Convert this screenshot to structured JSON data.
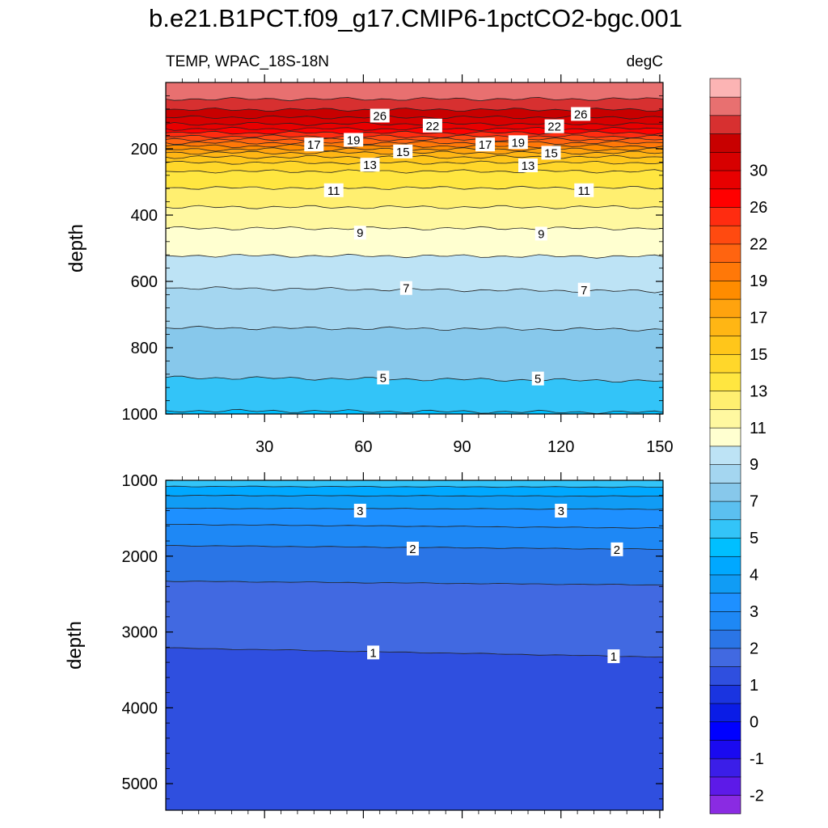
{
  "title": "b.e21.B1PCT.f09_g17.CMIP6-1pctCO2-bgc.001",
  "left_subtitle": "TEMP, WPAC_18S-18N",
  "right_subtitle": "degC",
  "chart_data": [
    {
      "type": "contour",
      "panel": "upper",
      "ylabel": "depth",
      "xlabel": "",
      "xlim": [
        0,
        151
      ],
      "ylim": [
        1000,
        0
      ],
      "y_reversed": true,
      "xticks": [
        30,
        60,
        90,
        120,
        150
      ],
      "yticks": [
        200,
        400,
        600,
        800,
        1000
      ],
      "contour_lines": [
        {
          "level": 30,
          "depths": [
            50,
            50
          ]
        },
        {
          "level": 28,
          "depths": [
            82,
            82
          ]
        },
        {
          "level": 26,
          "depths": [
            105,
            105
          ]
        },
        {
          "level": 24,
          "depths": [
            125,
            125
          ]
        },
        {
          "level": 22,
          "depths": [
            140,
            140
          ]
        },
        {
          "level": 21,
          "depths": [
            152,
            152
          ]
        },
        {
          "level": 20,
          "depths": [
            163,
            163
          ]
        },
        {
          "level": 19,
          "depths": [
            172,
            172
          ]
        },
        {
          "level": 18,
          "depths": [
            182,
            182
          ]
        },
        {
          "level": 17,
          "depths": [
            192,
            192
          ]
        },
        {
          "level": 16,
          "depths": [
            202,
            202
          ]
        },
        {
          "level": 15,
          "depths": [
            212,
            212
          ]
        },
        {
          "level": 14,
          "depths": [
            225,
            225
          ]
        },
        {
          "level": 13,
          "depths": [
            242,
            242
          ]
        },
        {
          "level": 12,
          "depths": [
            268,
            268
          ]
        },
        {
          "level": 11,
          "depths": [
            318,
            318
          ]
        },
        {
          "level": 10,
          "depths": [
            376,
            376
          ]
        },
        {
          "level": 9,
          "depths": [
            440,
            440
          ]
        },
        {
          "level": 8,
          "depths": [
            522,
            525
          ]
        },
        {
          "level": 7,
          "depths": [
            620,
            630
          ]
        },
        {
          "level": 6,
          "depths": [
            740,
            745
          ]
        },
        {
          "level": 5,
          "depths": [
            890,
            900
          ]
        },
        {
          "level": 4.5,
          "depths": [
            990,
            995
          ]
        }
      ],
      "contour_labels": [
        {
          "text": "26",
          "x": 65,
          "y": 100
        },
        {
          "text": "26",
          "x": 126,
          "y": 95
        },
        {
          "text": "22",
          "x": 81,
          "y": 130
        },
        {
          "text": "22",
          "x": 118,
          "y": 132
        },
        {
          "text": "17",
          "x": 45,
          "y": 187
        },
        {
          "text": "19",
          "x": 57,
          "y": 173
        },
        {
          "text": "17",
          "x": 97,
          "y": 187
        },
        {
          "text": "19",
          "x": 107,
          "y": 180
        },
        {
          "text": "15",
          "x": 72,
          "y": 208
        },
        {
          "text": "15",
          "x": 117,
          "y": 212
        },
        {
          "text": "13",
          "x": 62,
          "y": 248
        },
        {
          "text": "13",
          "x": 110,
          "y": 250
        },
        {
          "text": "11",
          "x": 51,
          "y": 325
        },
        {
          "text": "11",
          "x": 127,
          "y": 325
        },
        {
          "text": "9",
          "x": 59,
          "y": 453
        },
        {
          "text": "9",
          "x": 114,
          "y": 456
        },
        {
          "text": "7",
          "x": 73,
          "y": 620
        },
        {
          "text": "7",
          "x": 127,
          "y": 625
        },
        {
          "text": "5",
          "x": 66,
          "y": 890
        },
        {
          "text": "5",
          "x": 113,
          "y": 893
        }
      ]
    },
    {
      "type": "contour",
      "panel": "lower",
      "ylabel": "depth",
      "xlabel": "",
      "xlim": [
        0,
        151
      ],
      "ylim": [
        5350,
        1000
      ],
      "y_reversed": true,
      "xticks": [
        30,
        60,
        90,
        120,
        150
      ],
      "yticks": [
        1000,
        2000,
        3000,
        4000,
        5000
      ],
      "contour_lines": [
        {
          "level": 4,
          "depths": [
            1080,
            1090
          ]
        },
        {
          "level": 3.5,
          "depths": [
            1200,
            1210
          ]
        },
        {
          "level": 3,
          "depths": [
            1370,
            1380
          ]
        },
        {
          "level": 2.5,
          "depths": [
            1580,
            1630
          ]
        },
        {
          "level": 2,
          "depths": [
            1860,
            1910
          ]
        },
        {
          "level": 1.5,
          "depths": [
            2330,
            2380
          ]
        },
        {
          "level": 1,
          "depths": [
            3210,
            3330
          ]
        }
      ],
      "contour_labels": [
        {
          "text": "3",
          "x": 59,
          "y": 1400
        },
        {
          "text": "3",
          "x": 120,
          "y": 1400
        },
        {
          "text": "2",
          "x": 75,
          "y": 1900
        },
        {
          "text": "2",
          "x": 137,
          "y": 1910
        },
        {
          "text": "1",
          "x": 63,
          "y": 3270
        },
        {
          "text": "1",
          "x": 136,
          "y": 3320
        }
      ]
    }
  ],
  "colorbar": {
    "levels": [
      -3,
      -2.5,
      -2,
      -1.5,
      -1,
      -0.5,
      0,
      0.5,
      1,
      1.5,
      2,
      2.5,
      3,
      3.5,
      4,
      4.5,
      5,
      5.5,
      6,
      7,
      8,
      9,
      10,
      11,
      12,
      13,
      14,
      15,
      16,
      17,
      18,
      19,
      20,
      21,
      22,
      24,
      26,
      28,
      30,
      32,
      34
    ],
    "colors": [
      "#8A2BE2",
      "#5D1AE8",
      "#3B1EE8",
      "#1A0AF0",
      "#0000FF",
      "#0A1CE6",
      "#1A34E0",
      "#2F4FDF",
      "#4169E1",
      "#2A75E6",
      "#1E88F5",
      "#1E90FF",
      "#109CF5",
      "#00A8FF",
      "#00BFFF",
      "#33C4F8",
      "#5BC0F0",
      "#87C8EB",
      "#A4D6F0",
      "#BDE3F5",
      "#FFFFD0",
      "#FFF8A0",
      "#FFEF70",
      "#FFE640",
      "#FFD72A",
      "#FFC61A",
      "#FFB614",
      "#FFA30E",
      "#FF8C00",
      "#FF7808",
      "#FF6410",
      "#FF4A10",
      "#FF2C10",
      "#FF0000",
      "#E80000",
      "#D70000",
      "#C80000",
      "#D73030",
      "#E87070",
      "#FCB4B4"
    ],
    "labels": [
      {
        "index": 1,
        "text": "-2"
      },
      {
        "index": 3,
        "text": "-1"
      },
      {
        "index": 5,
        "text": "0"
      },
      {
        "index": 7,
        "text": "1"
      },
      {
        "index": 9,
        "text": "2"
      },
      {
        "index": 11,
        "text": "3"
      },
      {
        "index": 13,
        "text": "4"
      },
      {
        "index": 15,
        "text": "5"
      },
      {
        "index": 17,
        "text": "7"
      },
      {
        "index": 19,
        "text": "9"
      },
      {
        "index": 21,
        "text": "11"
      },
      {
        "index": 23,
        "text": "13"
      },
      {
        "index": 25,
        "text": "15"
      },
      {
        "index": 27,
        "text": "17"
      },
      {
        "index": 29,
        "text": "19"
      },
      {
        "index": 31,
        "text": "22"
      },
      {
        "index": 33,
        "text": "26"
      },
      {
        "index": 35,
        "text": "30"
      }
    ]
  }
}
